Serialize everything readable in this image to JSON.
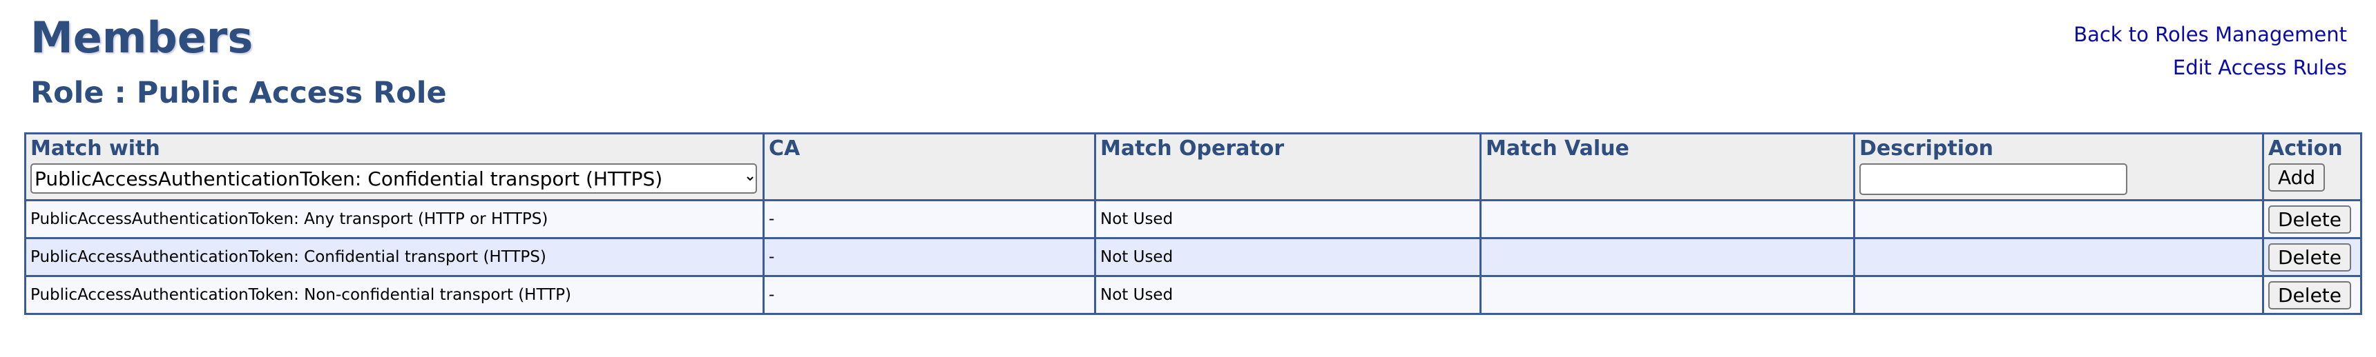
{
  "header": {
    "title": "Members",
    "subtitle": "Role : Public Access Role"
  },
  "links": {
    "back": "Back to Roles Management",
    "edit": "Edit Access Rules"
  },
  "table": {
    "columns": [
      "Match with",
      "CA",
      "Match Operator",
      "Match Value",
      "Description",
      "Action"
    ],
    "match_with_selected": "PublicAccessAuthenticationToken: Confidential transport (HTTPS)",
    "description_value": "",
    "add_label": "Add",
    "rows": [
      {
        "match_with": "PublicAccessAuthenticationToken: Any transport (HTTP or HTTPS)",
        "ca": "-",
        "operator": "Not Used",
        "value": "",
        "description": "",
        "action": "Delete"
      },
      {
        "match_with": "PublicAccessAuthenticationToken: Confidential transport (HTTPS)",
        "ca": "-",
        "operator": "Not Used",
        "value": "",
        "description": "",
        "action": "Delete"
      },
      {
        "match_with": "PublicAccessAuthenticationToken: Non-confidential transport (HTTP)",
        "ca": "-",
        "operator": "Not Used",
        "value": "",
        "description": "",
        "action": "Delete"
      }
    ]
  },
  "colors": {
    "heading": "#2d4e7e",
    "link": "#0a0aa8",
    "border": "#3a5c98",
    "header_bg": "#eeeeee",
    "row_odd": "#f7f8fd",
    "row_even": "#e5eafc"
  }
}
